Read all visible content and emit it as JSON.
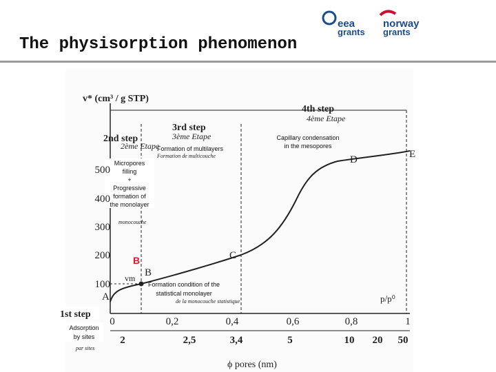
{
  "header": {
    "title": "The physisorption phenomenon",
    "logos": [
      {
        "text": [
          "eea",
          "grants"
        ]
      },
      {
        "text": [
          "norway",
          "grants"
        ]
      }
    ]
  },
  "figure": {
    "y_axis_label": "v* (cm³ / g STP)",
    "x_axis_label": "p/p⁰",
    "pore_axis_label": "ϕ pores (nm)",
    "x_ticks": [
      "0",
      "0,2",
      "0,4",
      "0,6",
      "0,8",
      "1"
    ],
    "y_ticks": [
      "100",
      "200",
      "300",
      "400",
      "500"
    ],
    "pore_ticks": [
      "2",
      "2,5",
      "3,4",
      "5",
      "10",
      "20",
      "50"
    ],
    "points": [
      "A",
      "B",
      "C",
      "D",
      "E"
    ],
    "vm": "vm",
    "original_labels": [
      "4ème Etape",
      "3ème Etape",
      "2ème Etape",
      "Formation de multicouche",
      "monocouche",
      "de la monocouche statistique",
      "par sites"
    ]
  },
  "annotations": {
    "step4": "4th step",
    "step3": "3rd step",
    "step2": "2nd step",
    "step1": "1st step",
    "capillary": [
      "Capillary condensation",
      "in the mesopores"
    ],
    "multilayers": "Formation of multilayers",
    "micropores": [
      "Micropores",
      "filling",
      "+",
      "Progressive",
      "formation of",
      "the monolayer"
    ],
    "b_label": "B",
    "monolayer": [
      "Formation condition of the",
      "statistical monolayer"
    ],
    "sites": [
      "Adsorption",
      "by sites"
    ]
  }
}
